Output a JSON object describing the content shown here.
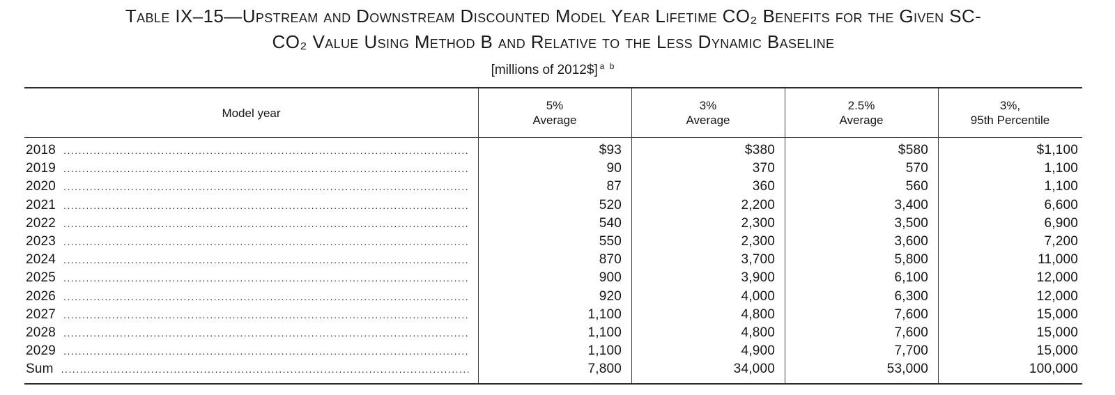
{
  "document": {
    "title_line1": "Table IX–15—Upstream and Downstream Discounted Model Year Lifetime CO₂ Benefits for the Given SC-",
    "title_line2": "CO₂ Value Using Method B and Relative to the Less Dynamic Baseline",
    "subtitle": "[millions of 2012$]",
    "footnote_markers": "a b"
  },
  "table": {
    "columns": [
      {
        "line1": "Model year",
        "line2": ""
      },
      {
        "line1": "5%",
        "line2": "Average"
      },
      {
        "line1": "3%",
        "line2": "Average"
      },
      {
        "line1": "2.5%",
        "line2": "Average"
      },
      {
        "line1": "3%,",
        "line2": "95th Percentile"
      }
    ],
    "rows": [
      {
        "label": "2018",
        "values": [
          "$93",
          "$380",
          "$580",
          "$1,100"
        ]
      },
      {
        "label": "2019",
        "values": [
          "90",
          "370",
          "570",
          "1,100"
        ]
      },
      {
        "label": "2020",
        "values": [
          "87",
          "360",
          "560",
          "1,100"
        ]
      },
      {
        "label": "2021",
        "values": [
          "520",
          "2,200",
          "3,400",
          "6,600"
        ]
      },
      {
        "label": "2022",
        "values": [
          "540",
          "2,300",
          "3,500",
          "6,900"
        ]
      },
      {
        "label": "2023",
        "values": [
          "550",
          "2,300",
          "3,600",
          "7,200"
        ]
      },
      {
        "label": "2024",
        "values": [
          "870",
          "3,700",
          "5,800",
          "11,000"
        ]
      },
      {
        "label": "2025",
        "values": [
          "900",
          "3,900",
          "6,100",
          "12,000"
        ]
      },
      {
        "label": "2026",
        "values": [
          "920",
          "4,000",
          "6,300",
          "12,000"
        ]
      },
      {
        "label": "2027",
        "values": [
          "1,100",
          "4,800",
          "7,600",
          "15,000"
        ]
      },
      {
        "label": "2028",
        "values": [
          "1,100",
          "4,800",
          "7,600",
          "15,000"
        ]
      },
      {
        "label": "2029",
        "values": [
          "1,100",
          "4,900",
          "7,700",
          "15,000"
        ]
      },
      {
        "label": "Sum",
        "values": [
          "7,800",
          "34,000",
          "53,000",
          "100,000"
        ]
      }
    ]
  },
  "chart_data": {
    "type": "table",
    "title": "Table IX–15—Upstream and Downstream Discounted Model Year Lifetime CO₂ Benefits for the Given SC-CO₂ Value Using Method B and Relative to the Less Dynamic Baseline",
    "units": "millions of 2012$",
    "columns": [
      "Model year",
      "5% Average",
      "3% Average",
      "2.5% Average",
      "3%, 95th Percentile"
    ],
    "rows": [
      [
        "2018",
        93,
        380,
        580,
        1100
      ],
      [
        "2019",
        90,
        370,
        570,
        1100
      ],
      [
        "2020",
        87,
        360,
        560,
        1100
      ],
      [
        "2021",
        520,
        2200,
        3400,
        6600
      ],
      [
        "2022",
        540,
        2300,
        3500,
        6900
      ],
      [
        "2023",
        550,
        2300,
        3600,
        7200
      ],
      [
        "2024",
        870,
        3700,
        5800,
        11000
      ],
      [
        "2025",
        900,
        3900,
        6100,
        12000
      ],
      [
        "2026",
        920,
        4000,
        6300,
        12000
      ],
      [
        "2027",
        1100,
        4800,
        7600,
        15000
      ],
      [
        "2028",
        1100,
        4800,
        7600,
        15000
      ],
      [
        "2029",
        1100,
        4900,
        7700,
        15000
      ],
      [
        "Sum",
        7800,
        34000,
        53000,
        100000
      ]
    ]
  }
}
